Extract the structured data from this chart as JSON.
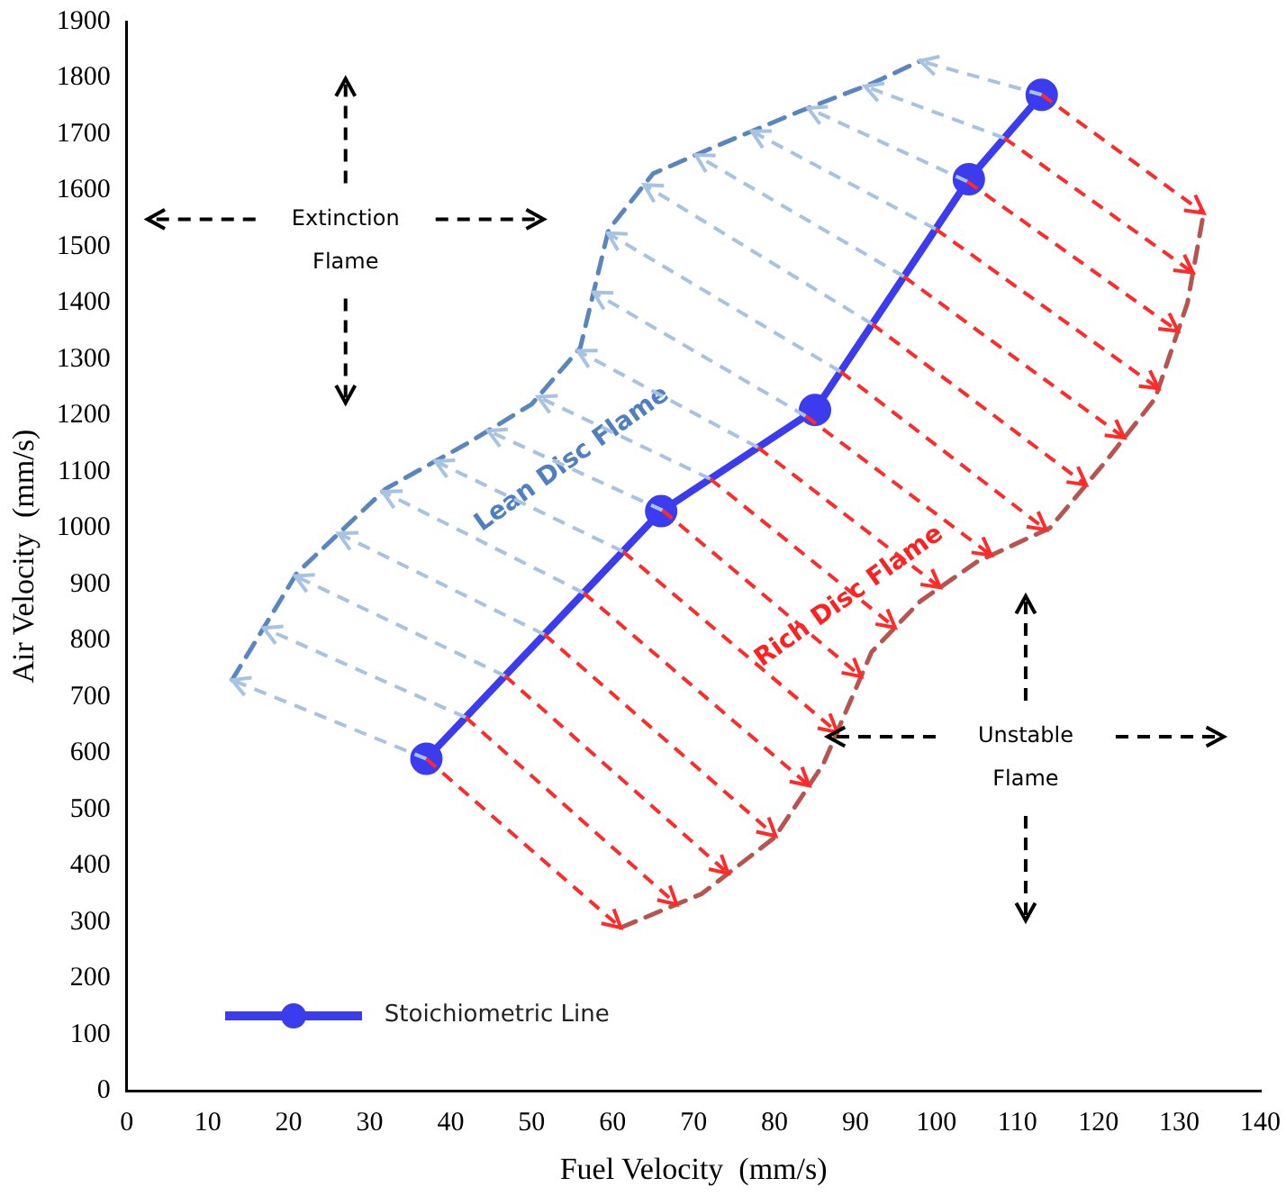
{
  "chart_data": {
    "type": "line",
    "xlabel": "Fuel Velocity  (mm/s)",
    "ylabel": "Air Velocity  (mm/s)",
    "xlim": [
      0,
      140
    ],
    "xticks": [
      0,
      10,
      20,
      30,
      40,
      50,
      60,
      70,
      80,
      90,
      100,
      110,
      120,
      130,
      140
    ],
    "ylim": [
      0,
      1900
    ],
    "yticks": [
      0,
      100,
      200,
      300,
      400,
      500,
      600,
      700,
      800,
      900,
      1000,
      1100,
      1200,
      1300,
      1400,
      1500,
      1600,
      1700,
      1800,
      1900
    ],
    "grid": false,
    "legend": "bottom left",
    "series": [
      {
        "name": "Stoichiometric Line",
        "color": "#3b3bf0",
        "marker": "circle",
        "line_style": "solid",
        "x": [
          37,
          66,
          85,
          104,
          113
        ],
        "values": [
          590,
          1030,
          1210,
          1620,
          1770
        ]
      },
      {
        "color": "#5a86c0",
        "marker": "none",
        "line_style": "dashed",
        "x": [
          13,
          21,
          32,
          42,
          50,
          56,
          59.5,
          65,
          73,
          83,
          92,
          98
        ],
        "values": [
          730,
          920,
          1070,
          1150,
          1220,
          1320,
          1530,
          1630,
          1680,
          1740,
          1790,
          1830
        ]
      },
      {
        "color": "#b85450",
        "marker": "none",
        "line_style": "dashed",
        "x": [
          61,
          71,
          80,
          86,
          92,
          98,
          105,
          114,
          121,
          127,
          131,
          133
        ],
        "values": [
          290,
          350,
          450,
          580,
          780,
          870,
          940,
          1000,
          1120,
          1230,
          1400,
          1560
        ]
      }
    ],
    "annotations": [
      {
        "text": "Lean Disc Flame",
        "x": 55,
        "y": 863
      },
      {
        "text": "Rich Disc Flame",
        "x": 75,
        "y": 1115
      },
      "Extinction Flame",
      "Unstable Flame"
    ]
  }
}
